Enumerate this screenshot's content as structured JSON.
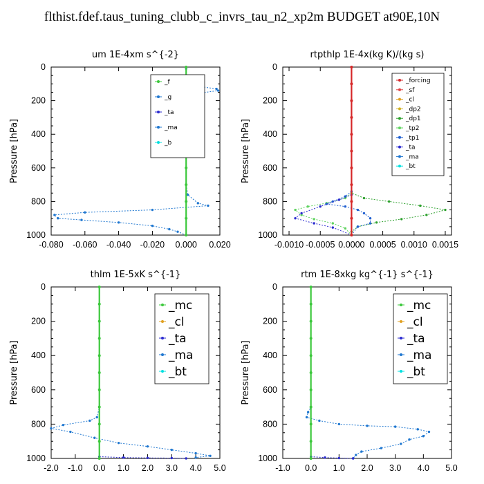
{
  "title": "flthist.fdef.taus_tuning_clubb_c_invrs_tau_n2_xp2m  BUDGET at90E,10N",
  "chart_data": [
    {
      "type": "line",
      "title": "um   1E-4xm s^{-2}",
      "ylabel": "Pressure [hPa]",
      "xlim": [
        -0.08,
        0.02
      ],
      "ylim": [
        1000,
        0
      ],
      "xticks": [
        "-0.080",
        "-0.060",
        "-0.040",
        "-0.020",
        "0.000",
        "0.020"
      ],
      "xtick_values": [
        -0.08,
        -0.06,
        -0.04,
        -0.02,
        0.0,
        0.02
      ],
      "yticks": [
        "0",
        "200",
        "400",
        "600",
        "800",
        "1000"
      ],
      "legend": "top-right",
      "legend_size": "small",
      "legend_entries": [
        "_f",
        "_g",
        "_ta",
        "_ma",
        "_b"
      ],
      "series": [
        {
          "name": "_ma",
          "color": "#1f77d0",
          "points": [
            [
              0,
              10
            ],
            [
              0,
              50
            ],
            [
              0.001,
              80
            ],
            [
              0.004,
              110
            ],
            [
              0.018,
              130
            ],
            [
              0.019,
              140
            ],
            [
              0.008,
              155
            ],
            [
              -0.004,
              170
            ],
            [
              -0.019,
              185
            ],
            [
              -0.008,
              200
            ],
            [
              -0.002,
              220
            ],
            [
              0,
              250
            ],
            [
              0,
              300
            ],
            [
              0,
              400
            ],
            [
              0,
              500
            ],
            [
              0,
              600
            ],
            [
              0,
              700
            ],
            [
              0.001,
              760
            ],
            [
              0.007,
              810
            ],
            [
              0.013,
              825
            ],
            [
              -0.02,
              850
            ],
            [
              -0.06,
              865
            ],
            [
              -0.078,
              880
            ],
            [
              -0.076,
              900
            ],
            [
              -0.062,
              910
            ],
            [
              -0.04,
              925
            ],
            [
              -0.02,
              945
            ],
            [
              -0.01,
              965
            ],
            [
              -0.005,
              980
            ],
            [
              0,
              1000
            ]
          ]
        },
        {
          "name": "_f",
          "color": "#3cc83c",
          "points": [
            [
              0,
              0
            ],
            [
              0,
              100
            ],
            [
              0,
              200
            ],
            [
              0,
              300
            ],
            [
              0,
              400
            ],
            [
              0,
              500
            ],
            [
              0,
              600
            ],
            [
              0,
              700
            ],
            [
              0,
              800
            ],
            [
              0,
              900
            ],
            [
              0,
              1000
            ]
          ]
        }
      ]
    },
    {
      "type": "line",
      "title": "rtpthlp   1E-4x(kg K)/(kg s)",
      "ylabel": "Pressure [hPa]",
      "xlim": [
        -0.0011,
        0.0016
      ],
      "ylim": [
        1000,
        0
      ],
      "xticks": [
        "-0.0010",
        "-0.0005",
        "0.0000",
        "0.0005",
        "0.0010",
        "0.0015"
      ],
      "xtick_values": [
        -0.001,
        -0.0005,
        0.0,
        0.0005,
        0.001,
        0.0015
      ],
      "yticks": [
        "0",
        "200",
        "400",
        "600",
        "800",
        "1000"
      ],
      "legend": "top-right",
      "legend_size": "small",
      "legend_entries": [
        "_forcing",
        "_sf",
        "_cl",
        "_dp2",
        "_dp1",
        "_tp2",
        "_tp1",
        "_ta",
        "_ma",
        "_bt"
      ],
      "series": [
        {
          "name": "_dp1",
          "color": "#2ca02c",
          "points": [
            [
              0,
              0
            ],
            [
              0,
              500
            ],
            [
              0,
              700
            ],
            [
              0,
              750
            ],
            [
              0.0002,
              780
            ],
            [
              0.0006,
              800
            ],
            [
              0.0011,
              825
            ],
            [
              0.0015,
              850
            ],
            [
              0.0012,
              880
            ],
            [
              0.0008,
              905
            ],
            [
              0.0004,
              925
            ],
            [
              0.0001,
              950
            ],
            [
              0,
              980
            ],
            [
              0,
              1000
            ]
          ]
        },
        {
          "name": "_tp2",
          "color": "#5fd35f",
          "points": [
            [
              0,
              750
            ],
            [
              -0.0001,
              780
            ],
            [
              -0.0004,
              810
            ],
            [
              -0.0007,
              830
            ],
            [
              -0.0009,
              850
            ],
            [
              -0.0008,
              880
            ],
            [
              -0.0006,
              905
            ],
            [
              -0.0003,
              930
            ],
            [
              -0.0001,
              960
            ],
            [
              0,
              1000
            ]
          ]
        },
        {
          "name": "_tp1",
          "color": "#1f5fd0",
          "points": [
            [
              0,
              740
            ],
            [
              -0.0001,
              770
            ],
            [
              -0.0003,
              800
            ],
            [
              -0.0004,
              815
            ],
            [
              -0.0001,
              830
            ],
            [
              0.0001,
              850
            ],
            [
              0.0002,
              870
            ],
            [
              0.0003,
              900
            ],
            [
              0.0003,
              930
            ],
            [
              0.0001,
              950
            ],
            [
              0,
              1000
            ]
          ]
        },
        {
          "name": "_ta",
          "color": "#2b2bd0",
          "points": [
            [
              0,
              760
            ],
            [
              -0.0002,
              790
            ],
            [
              -0.0005,
              830
            ],
            [
              -0.0008,
              870
            ],
            [
              -0.0009,
              900
            ],
            [
              -0.0006,
              930
            ],
            [
              -0.0003,
              955
            ],
            [
              0,
              1000
            ]
          ]
        },
        {
          "name": "_forcing",
          "color": "#d62728",
          "points": [
            [
              0,
              0
            ],
            [
              0,
              100
            ],
            [
              0,
              200
            ],
            [
              0,
              300
            ],
            [
              0,
              400
            ],
            [
              0,
              500
            ],
            [
              0,
              600
            ],
            [
              0,
              700
            ],
            [
              0,
              800
            ],
            [
              0,
              900
            ],
            [
              0,
              1000
            ]
          ]
        }
      ]
    },
    {
      "type": "line",
      "title": "thlm   1E-5xK s^{-1}",
      "ylabel": "Pressure [hPa]",
      "xlim": [
        -2.0,
        5.0
      ],
      "ylim": [
        1000,
        0
      ],
      "xticks": [
        "-2.0",
        "-1.0",
        "0.0",
        "1.0",
        "2.0",
        "3.0",
        "4.0",
        "5.0"
      ],
      "xtick_values": [
        -2,
        -1,
        0,
        1,
        2,
        3,
        4,
        5
      ],
      "yticks": [
        "0",
        "200",
        "400",
        "600",
        "800",
        "1000"
      ],
      "legend": "top-right",
      "legend_size": "large",
      "legend_entries": [
        "_mc",
        "_cl",
        "_ta",
        "_ma",
        "_bt"
      ],
      "series": [
        {
          "name": "_cl",
          "color": "#1f77d0",
          "points": [
            [
              0,
              0
            ],
            [
              0,
              100
            ],
            [
              0,
              200
            ],
            [
              0,
              300
            ],
            [
              0,
              400
            ],
            [
              0,
              500
            ],
            [
              0,
              600
            ],
            [
              0,
              700
            ],
            [
              -0.1,
              760
            ],
            [
              -0.4,
              780
            ],
            [
              -1.5,
              805
            ],
            [
              -2.0,
              825
            ],
            [
              -1.2,
              845
            ],
            [
              -0.2,
              880
            ],
            [
              0.8,
              910
            ],
            [
              2.0,
              930
            ],
            [
              3.0,
              950
            ],
            [
              4.0,
              970
            ],
            [
              4.6,
              985
            ],
            [
              4.0,
              995
            ]
          ]
        },
        {
          "name": "_ta",
          "color": "#2b2bd0",
          "points": [
            [
              0,
              990
            ],
            [
              1.0,
              995
            ],
            [
              2.0,
              997
            ],
            [
              3.0,
              998
            ],
            [
              3.6,
              1000
            ]
          ]
        },
        {
          "name": "_mc",
          "color": "#3cc83c",
          "points": [
            [
              0,
              0
            ],
            [
              0,
              100
            ],
            [
              0,
              200
            ],
            [
              0,
              300
            ],
            [
              0,
              400
            ],
            [
              0,
              500
            ],
            [
              0,
              600
            ],
            [
              0,
              700
            ],
            [
              0,
              800
            ],
            [
              0,
              900
            ],
            [
              0,
              1000
            ]
          ]
        }
      ]
    },
    {
      "type": "line",
      "title": "rtm   1E-8xkg kg^{-1} s^{-1}",
      "ylabel": "Pressure [hPa]",
      "xlim": [
        -1.0,
        5.0
      ],
      "ylim": [
        1000,
        0
      ],
      "xticks": [
        "-1.0",
        "0.0",
        "1.0",
        "2.0",
        "3.0",
        "4.0",
        "5.0"
      ],
      "xtick_values": [
        -1,
        0,
        1,
        2,
        3,
        4,
        5
      ],
      "yticks": [
        "0",
        "200",
        "400",
        "600",
        "800",
        "1000"
      ],
      "legend": "top-right",
      "legend_size": "large",
      "legend_entries": [
        "_mc",
        "_cl",
        "_ta",
        "_ma",
        "_bt"
      ],
      "series": [
        {
          "name": "_cl",
          "color": "#1f77d0",
          "points": [
            [
              0,
              0
            ],
            [
              0,
              100
            ],
            [
              0,
              200
            ],
            [
              0,
              300
            ],
            [
              0,
              400
            ],
            [
              0,
              500
            ],
            [
              0,
              600
            ],
            [
              0,
              700
            ],
            [
              -0.1,
              730
            ],
            [
              -0.15,
              760
            ],
            [
              0.3,
              780
            ],
            [
              1.0,
              800
            ],
            [
              2.0,
              810
            ],
            [
              3.0,
              815
            ],
            [
              3.8,
              830
            ],
            [
              4.2,
              845
            ],
            [
              4.0,
              870
            ],
            [
              3.5,
              890
            ],
            [
              3.2,
              915
            ],
            [
              2.5,
              940
            ],
            [
              1.8,
              960
            ],
            [
              1.6,
              980
            ],
            [
              1.5,
              1000
            ]
          ]
        },
        {
          "name": "_ta",
          "color": "#2b2bd0",
          "points": [
            [
              0,
              990
            ],
            [
              0.5,
              995
            ],
            [
              1.0,
              998
            ],
            [
              1.5,
              1000
            ]
          ]
        },
        {
          "name": "_mc",
          "color": "#3cc83c",
          "points": [
            [
              0,
              0
            ],
            [
              0,
              100
            ],
            [
              0,
              200
            ],
            [
              0,
              300
            ],
            [
              0,
              400
            ],
            [
              0,
              500
            ],
            [
              0,
              600
            ],
            [
              0,
              700
            ],
            [
              0,
              800
            ],
            [
              0,
              900
            ],
            [
              0,
              1000
            ]
          ]
        }
      ]
    }
  ]
}
